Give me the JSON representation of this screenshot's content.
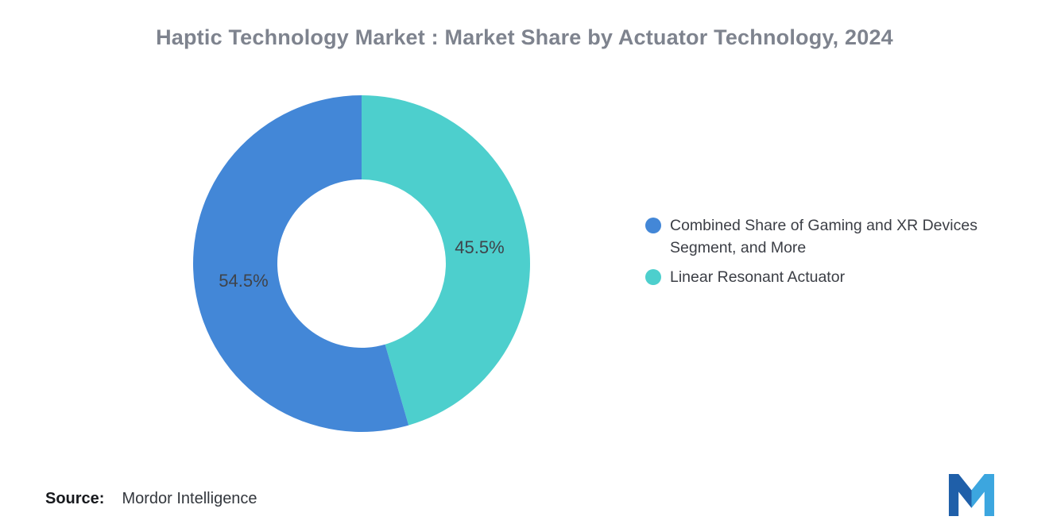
{
  "title": "Haptic Technology Market : Market Share by Actuator Technology, 2024",
  "source": {
    "label": "Source:",
    "value": "Mordor Intelligence"
  },
  "logo": {
    "name": "mordor-intelligence-logo",
    "colors": {
      "left": "#1F5FA9",
      "right": "#3CA6DF"
    }
  },
  "chart_data": {
    "type": "pie",
    "subtype": "donut",
    "title": "Haptic Technology Market : Market Share by Actuator Technology, 2024",
    "start_angle_deg": 0,
    "direction": "clockwise",
    "inner_radius_ratio": 0.5,
    "segments": [
      {
        "label": "Linear Resonant Actuator",
        "value": 45.5,
        "display": "45.5%",
        "color": "#4DCFCD"
      },
      {
        "label": "Combined Share of Gaming and XR Devices Segment, and More",
        "value": 54.5,
        "display": "54.5%",
        "color": "#4387D7"
      }
    ],
    "value_label_color": "#3f434a",
    "legend_position": "right",
    "legend": [
      {
        "label": "Combined Share of Gaming and XR Devices Segment, and More",
        "color": "#4387D7"
      },
      {
        "label": "Linear Resonant Actuator",
        "color": "#4DCFCD"
      }
    ]
  }
}
